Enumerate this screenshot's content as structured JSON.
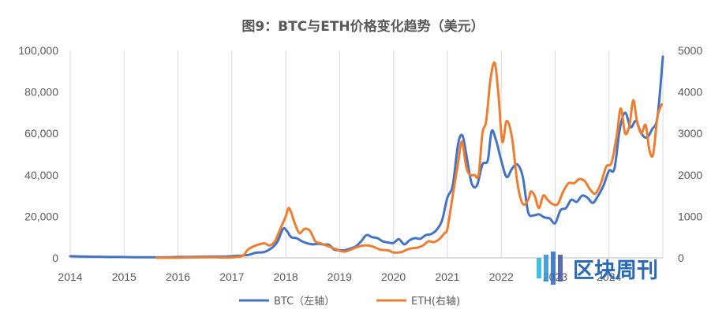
{
  "chart_data": {
    "type": "line",
    "title": "图9：BTC与ETH价格变化趋势（美元）",
    "x_tick_labels": [
      "2014",
      "2015",
      "2016",
      "2017",
      "2018",
      "2019",
      "2020",
      "2021",
      "2022",
      "2023",
      "2024"
    ],
    "y_left": {
      "ylim": [
        0,
        100000
      ],
      "ticks": [
        0,
        20000,
        40000,
        60000,
        80000,
        100000
      ],
      "tick_labels": [
        "0",
        "20,000",
        "40,000",
        "60,000",
        "80,000",
        "100,000"
      ]
    },
    "y_right": {
      "ylim": [
        0,
        5000
      ],
      "ticks": [
        0,
        1000,
        2000,
        3000,
        4000,
        5000
      ],
      "tick_labels": [
        "0",
        "1000",
        "2000",
        "3000",
        "4000",
        "5000"
      ]
    },
    "grid": "vertical",
    "legend_position": "bottom",
    "series": [
      {
        "name": "BTC（左轴）",
        "axis": "left",
        "color": "#4472c4",
        "x": [
          2014.0,
          2014.3,
          2014.6,
          2014.9,
          2015.2,
          2015.5,
          2015.8,
          2016.0,
          2016.3,
          2016.6,
          2016.9,
          2017.1,
          2017.3,
          2017.45,
          2017.6,
          2017.75,
          2017.85,
          2017.95,
          2018.02,
          2018.1,
          2018.2,
          2018.3,
          2018.4,
          2018.5,
          2018.6,
          2018.7,
          2018.8,
          2018.9,
          2019.0,
          2019.1,
          2019.2,
          2019.3,
          2019.4,
          2019.5,
          2019.6,
          2019.7,
          2019.8,
          2019.9,
          2020.0,
          2020.1,
          2020.2,
          2020.3,
          2020.4,
          2020.5,
          2020.6,
          2020.7,
          2020.8,
          2020.9,
          2021.0,
          2021.1,
          2021.2,
          2021.28,
          2021.35,
          2021.45,
          2021.55,
          2021.65,
          2021.75,
          2021.82,
          2021.9,
          2022.0,
          2022.1,
          2022.2,
          2022.3,
          2022.4,
          2022.5,
          2022.6,
          2022.7,
          2022.8,
          2022.9,
          2023.0,
          2023.1,
          2023.2,
          2023.3,
          2023.4,
          2023.5,
          2023.6,
          2023.7,
          2023.8,
          2023.9,
          2024.0,
          2024.1,
          2024.2,
          2024.3,
          2024.4,
          2024.5,
          2024.6,
          2024.7,
          2024.8,
          2024.9,
          2025.0
        ],
        "values": [
          800,
          600,
          500,
          400,
          300,
          250,
          250,
          400,
          450,
          600,
          700,
          1000,
          1400,
          2500,
          2800,
          5000,
          8000,
          14000,
          13000,
          10000,
          9500,
          8000,
          7000,
          6500,
          6800,
          6400,
          6300,
          4000,
          3700,
          3700,
          4500,
          5500,
          8000,
          11000,
          10000,
          9500,
          8000,
          7400,
          7200,
          9000,
          6500,
          8500,
          9500,
          9200,
          11000,
          11500,
          13500,
          18000,
          29000,
          35000,
          55000,
          59000,
          50000,
          36000,
          35000,
          45000,
          47000,
          61000,
          57000,
          47000,
          39000,
          43000,
          45000,
          39000,
          22000,
          20500,
          21000,
          19500,
          19000,
          16700,
          23000,
          24000,
          28000,
          27000,
          30000,
          29000,
          26500,
          30000,
          35000,
          42000,
          43000,
          62000,
          70000,
          63000,
          66000,
          60000,
          58000,
          62000,
          68000,
          97000
        ]
      },
      {
        "name": "ETH(右轴)",
        "axis": "right",
        "color": "#ed7d31",
        "x": [
          2015.6,
          2015.8,
          2016.0,
          2016.2,
          2016.4,
          2016.6,
          2016.8,
          2017.0,
          2017.2,
          2017.3,
          2017.45,
          2017.6,
          2017.7,
          2017.8,
          2017.9,
          2018.0,
          2018.05,
          2018.1,
          2018.15,
          2018.25,
          2018.35,
          2018.45,
          2018.55,
          2018.65,
          2018.75,
          2018.85,
          2018.95,
          2019.1,
          2019.3,
          2019.45,
          2019.6,
          2019.75,
          2019.9,
          2020.0,
          2020.15,
          2020.25,
          2020.35,
          2020.45,
          2020.55,
          2020.65,
          2020.75,
          2020.85,
          2020.95,
          2021.0,
          2021.1,
          2021.2,
          2021.27,
          2021.35,
          2021.42,
          2021.5,
          2021.58,
          2021.65,
          2021.72,
          2021.8,
          2021.88,
          2021.95,
          2022.02,
          2022.1,
          2022.2,
          2022.3,
          2022.4,
          2022.5,
          2022.55,
          2022.62,
          2022.7,
          2022.78,
          2022.86,
          2022.95,
          2023.05,
          2023.15,
          2023.25,
          2023.35,
          2023.45,
          2023.55,
          2023.65,
          2023.75,
          2023.85,
          2023.95,
          2024.05,
          2024.15,
          2024.22,
          2024.3,
          2024.38,
          2024.45,
          2024.52,
          2024.6,
          2024.68,
          2024.75,
          2024.82,
          2024.9,
          2024.98
        ],
        "values": [
          1,
          1,
          1,
          10,
          12,
          13,
          10,
          10,
          50,
          200,
          300,
          350,
          300,
          400,
          700,
          1000,
          1200,
          1100,
          900,
          600,
          700,
          650,
          400,
          350,
          300,
          250,
          200,
          150,
          250,
          300,
          280,
          200,
          180,
          130,
          140,
          200,
          230,
          250,
          300,
          400,
          380,
          450,
          600,
          700,
          1500,
          2300,
          2800,
          2200,
          2000,
          2000,
          2000,
          3000,
          3300,
          4300,
          4700,
          3900,
          2800,
          3300,
          2900,
          1800,
          1300,
          1400,
          1600,
          1500,
          1200,
          1500,
          1400,
          1300,
          1300,
          1600,
          1800,
          1800,
          1900,
          1850,
          1650,
          1550,
          1800,
          2200,
          2300,
          3000,
          3600,
          3000,
          3200,
          3800,
          3300,
          3000,
          3200,
          2600,
          2500,
          3400,
          3700
        ]
      }
    ]
  },
  "watermark": {
    "text": "区块周刊",
    "icon": "bar-stripes-logo-icon"
  }
}
